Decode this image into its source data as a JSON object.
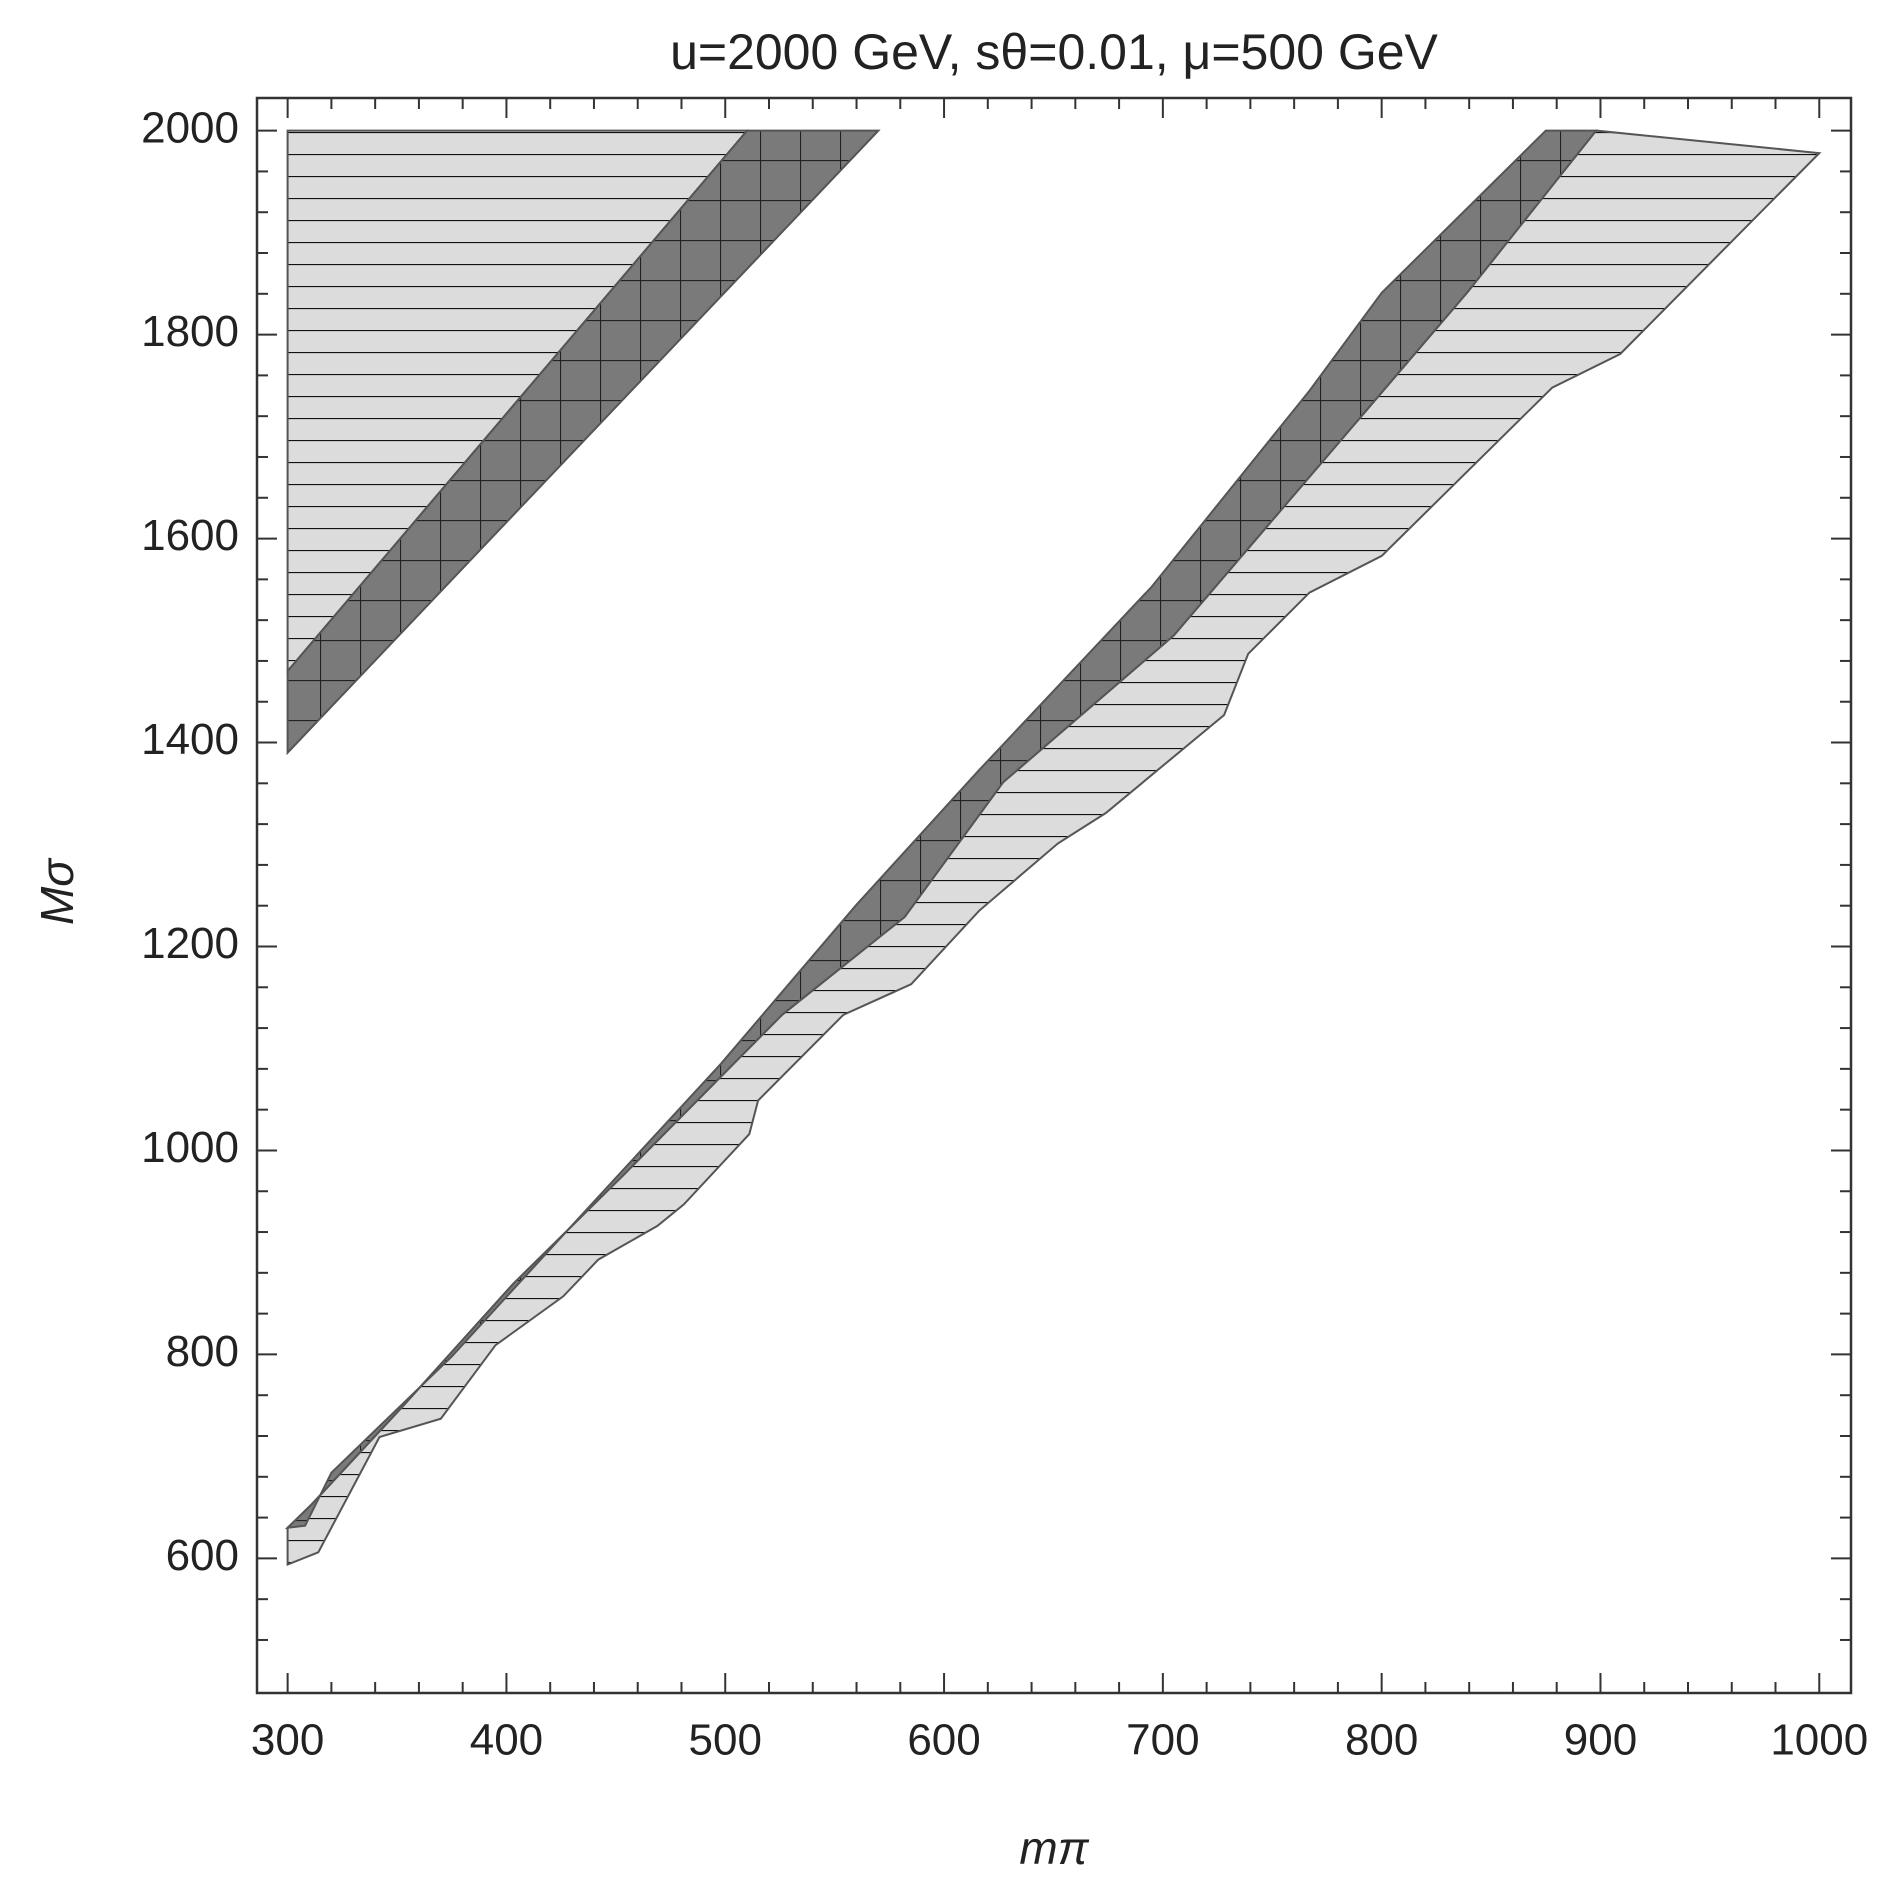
{
  "chart_data": {
    "type": "region",
    "title": "u=2000 GeV, sθ=0.01, μ=500 GeV",
    "xlabel": "mπ",
    "ylabel": "Mσ",
    "xlim": [
      286,
      1014.5
    ],
    "ylim": [
      468,
      2032
    ],
    "xticks": [
      300,
      400,
      500,
      600,
      700,
      800,
      900,
      1000
    ],
    "yticks": [
      600,
      800,
      1000,
      1200,
      1400,
      1600,
      1800,
      2000
    ],
    "xminorticks": [
      320,
      340,
      360,
      380,
      420,
      440,
      460,
      480,
      520,
      540,
      560,
      580,
      620,
      640,
      660,
      680,
      720,
      740,
      760,
      780,
      820,
      840,
      860,
      880,
      920,
      940,
      960,
      980
    ],
    "yminorticks": [
      520,
      560,
      640,
      680,
      720,
      760,
      840,
      880,
      920,
      960,
      1040,
      1080,
      1120,
      1160,
      1240,
      1280,
      1320,
      1360,
      1440,
      1480,
      1520,
      1560,
      1640,
      1680,
      1720,
      1760,
      1840,
      1880,
      1920,
      1960
    ],
    "regions": [
      {
        "color": "#dcdcdc",
        "hatch": "horizontal",
        "x": [
          300,
          300,
          510
        ],
        "y": [
          1470,
          2000,
          2000
        ]
      },
      {
        "color": "#7a7a7a",
        "hatch": "cross",
        "x": [
          300,
          510,
          570,
          300
        ],
        "y": [
          1470,
          2000,
          2000,
          1390
        ]
      },
      {
        "color": "#dcdcdc",
        "hatch": "horizontal",
        "x": [
          311,
          353,
          403,
          454,
          526,
          582,
          627,
          705,
          772,
          839,
          898,
          1000,
          909,
          878,
          800,
          767,
          739,
          728,
          674,
          652,
          616,
          585,
          554,
          515,
          511,
          481,
          469,
          442,
          426,
          395,
          370,
          342,
          314,
          300,
          300
        ],
        "y": [
          653,
          750,
          869,
          977,
          1133,
          1229,
          1361,
          1505,
          1673,
          1841,
          2000,
          1978,
          1781,
          1748,
          1583,
          1547,
          1487,
          1427,
          1331,
          1301,
          1235,
          1163,
          1133,
          1049,
          1016,
          947,
          926,
          893,
          857,
          809,
          737,
          719,
          606,
          594,
          630
        ]
      },
      {
        "color": "#7a7a7a",
        "hatch": "cross",
        "x": [
          300,
          308,
          320,
          375,
          431,
          498,
          560,
          616,
          695,
          767,
          800,
          875,
          898,
          839,
          772,
          705,
          627,
          582,
          526,
          454,
          403,
          353,
          311
        ],
        "y": [
          630,
          632,
          684,
          798,
          929,
          1085,
          1241,
          1373,
          1553,
          1745,
          1841,
          2000,
          2000,
          1841,
          1673,
          1505,
          1361,
          1229,
          1133,
          977,
          869,
          750,
          653
        ]
      }
    ]
  }
}
